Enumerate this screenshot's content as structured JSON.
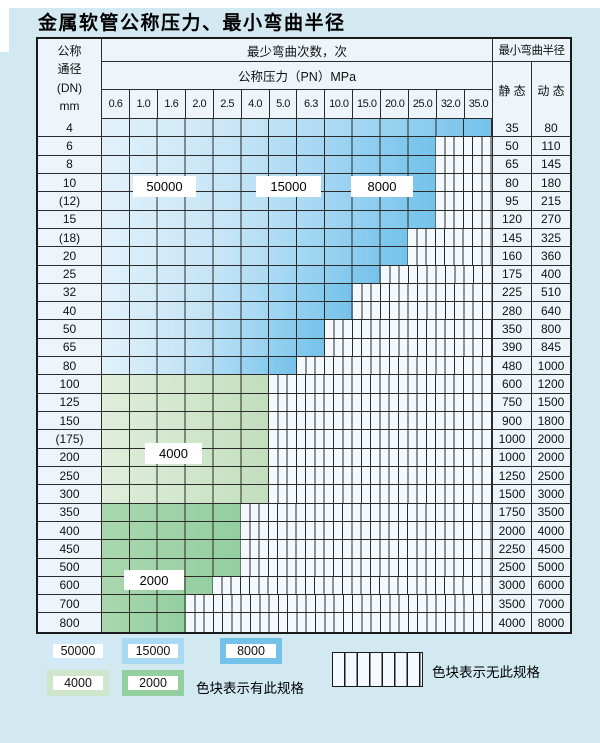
{
  "title": "金属软管公称压力、最小弯曲半径",
  "colors": {
    "cycles_50000": "#d2eaf8",
    "cycles_15000": "#a9d9f3",
    "cycles_8000": "#74c2ea",
    "cycles_4000": "#cfe6ca",
    "cycles_2000": "#94cfa0",
    "grid": "#2b2b2b",
    "stripe_bg": "#f3f9fd",
    "cell_bg": "#edf5fa",
    "page_bg": "#d3e9f2"
  },
  "chart_data": {
    "type": "heatmap_table",
    "title": "金属软管公称压力、最小弯曲半径",
    "header": {
      "dn_lines": [
        "公称",
        "通径",
        "(DN)",
        "mm"
      ],
      "bend_cycles_title": "最少弯曲次数，次",
      "pressure_title": "公称压力（PN）MPa",
      "min_radius_title": "最小弯曲半径",
      "static_label": "静 态",
      "dynamic_label": "动 态"
    },
    "pressure_columns": [
      "0.6",
      "1.0",
      "1.6",
      "2.0",
      "2.5",
      "4.0",
      "5.0",
      "6.3",
      "10.0",
      "15.0",
      "20.0",
      "25.0",
      "32.0",
      "35.0"
    ],
    "cycle_bands": {
      "blue_rows_DN_4_to_80_by_PN": {
        "0.6-2.5": 50000,
        "4.0-10.0": 15000,
        "15.0-35.0": 8000
      },
      "green_rows_by_DN": {
        "100-300": 4000,
        "350-800": 2000
      }
    },
    "rows": [
      {
        "dn": "4",
        "colored_cols": 14,
        "fill": "blue",
        "available_through_pn": "35.0",
        "static": "35",
        "dynamic": "80"
      },
      {
        "dn": "6",
        "colored_cols": 12,
        "fill": "blue",
        "available_through_pn": "25.0",
        "static": "50",
        "dynamic": "110"
      },
      {
        "dn": "8",
        "colored_cols": 12,
        "fill": "blue",
        "available_through_pn": "25.0",
        "static": "65",
        "dynamic": "145"
      },
      {
        "dn": "10",
        "colored_cols": 12,
        "fill": "blue",
        "available_through_pn": "25.0",
        "static": "80",
        "dynamic": "180"
      },
      {
        "dn": "(12)",
        "colored_cols": 12,
        "fill": "blue",
        "available_through_pn": "25.0",
        "static": "95",
        "dynamic": "215"
      },
      {
        "dn": "15",
        "colored_cols": 12,
        "fill": "blue",
        "available_through_pn": "25.0",
        "static": "120",
        "dynamic": "270"
      },
      {
        "dn": "(18)",
        "colored_cols": 11,
        "fill": "blue",
        "available_through_pn": "20.0",
        "static": "145",
        "dynamic": "325"
      },
      {
        "dn": "20",
        "colored_cols": 11,
        "fill": "blue",
        "available_through_pn": "20.0",
        "static": "160",
        "dynamic": "360"
      },
      {
        "dn": "25",
        "colored_cols": 10,
        "fill": "blue",
        "available_through_pn": "15.0",
        "static": "175",
        "dynamic": "400"
      },
      {
        "dn": "32",
        "colored_cols": 9,
        "fill": "blue",
        "available_through_pn": "10.0",
        "static": "225",
        "dynamic": "510"
      },
      {
        "dn": "40",
        "colored_cols": 9,
        "fill": "blue",
        "available_through_pn": "10.0",
        "static": "280",
        "dynamic": "640"
      },
      {
        "dn": "50",
        "colored_cols": 8,
        "fill": "blue",
        "available_through_pn": "6.3",
        "static": "350",
        "dynamic": "800"
      },
      {
        "dn": "65",
        "colored_cols": 8,
        "fill": "blue",
        "available_through_pn": "6.3",
        "static": "390",
        "dynamic": "845"
      },
      {
        "dn": "80",
        "colored_cols": 7,
        "fill": "blue",
        "available_through_pn": "5.0",
        "static": "480",
        "dynamic": "1000"
      },
      {
        "dn": "100",
        "colored_cols": 6,
        "fill": "green_light",
        "available_through_pn": "4.0",
        "static": "600",
        "dynamic": "1200"
      },
      {
        "dn": "125",
        "colored_cols": 6,
        "fill": "green_light",
        "available_through_pn": "4.0",
        "static": "750",
        "dynamic": "1500"
      },
      {
        "dn": "150",
        "colored_cols": 6,
        "fill": "green_light",
        "available_through_pn": "4.0",
        "static": "900",
        "dynamic": "1800"
      },
      {
        "dn": "(175)",
        "colored_cols": 6,
        "fill": "green_light",
        "available_through_pn": "4.0",
        "static": "1000",
        "dynamic": "2000"
      },
      {
        "dn": "200",
        "colored_cols": 6,
        "fill": "green_light",
        "available_through_pn": "4.0",
        "static": "1000",
        "dynamic": "2000"
      },
      {
        "dn": "250",
        "colored_cols": 6,
        "fill": "green_light",
        "available_through_pn": "4.0",
        "static": "1250",
        "dynamic": "2500"
      },
      {
        "dn": "300",
        "colored_cols": 6,
        "fill": "green_light",
        "available_through_pn": "4.0",
        "static": "1500",
        "dynamic": "3000"
      },
      {
        "dn": "350",
        "colored_cols": 5,
        "fill": "green_dark",
        "available_through_pn": "2.5",
        "static": "1750",
        "dynamic": "3500"
      },
      {
        "dn": "400",
        "colored_cols": 5,
        "fill": "green_dark",
        "available_through_pn": "2.5",
        "static": "2000",
        "dynamic": "4000"
      },
      {
        "dn": "450",
        "colored_cols": 5,
        "fill": "green_dark",
        "available_through_pn": "2.5",
        "static": "2250",
        "dynamic": "4500"
      },
      {
        "dn": "500",
        "colored_cols": 5,
        "fill": "green_dark",
        "available_through_pn": "2.5",
        "static": "2500",
        "dynamic": "5000"
      },
      {
        "dn": "600",
        "colored_cols": 4,
        "fill": "green_dark",
        "available_through_pn": "2.0",
        "static": "3000",
        "dynamic": "6000"
      },
      {
        "dn": "700",
        "colored_cols": 3,
        "fill": "green_dark",
        "available_through_pn": "1.6",
        "static": "3500",
        "dynamic": "7000"
      },
      {
        "dn": "800",
        "colored_cols": 3,
        "fill": "green_dark",
        "available_through_pn": "1.6",
        "static": "4000",
        "dynamic": "8000"
      }
    ],
    "overlay_labels": {
      "c50000": "50000",
      "c15000": "15000",
      "c8000": "8000",
      "c4000": "4000",
      "c2000": "2000"
    },
    "legend": {
      "items": [
        {
          "label": "50000",
          "color_key": "cycles_50000"
        },
        {
          "label": "15000",
          "color_key": "cycles_15000"
        },
        {
          "label": "8000",
          "color_key": "cycles_8000"
        },
        {
          "label": "4000",
          "color_key": "cycles_4000"
        },
        {
          "label": "2000",
          "color_key": "cycles_2000"
        }
      ],
      "has_spec": "色块表示有此规格",
      "no_spec": "色块表示无此规格"
    }
  }
}
